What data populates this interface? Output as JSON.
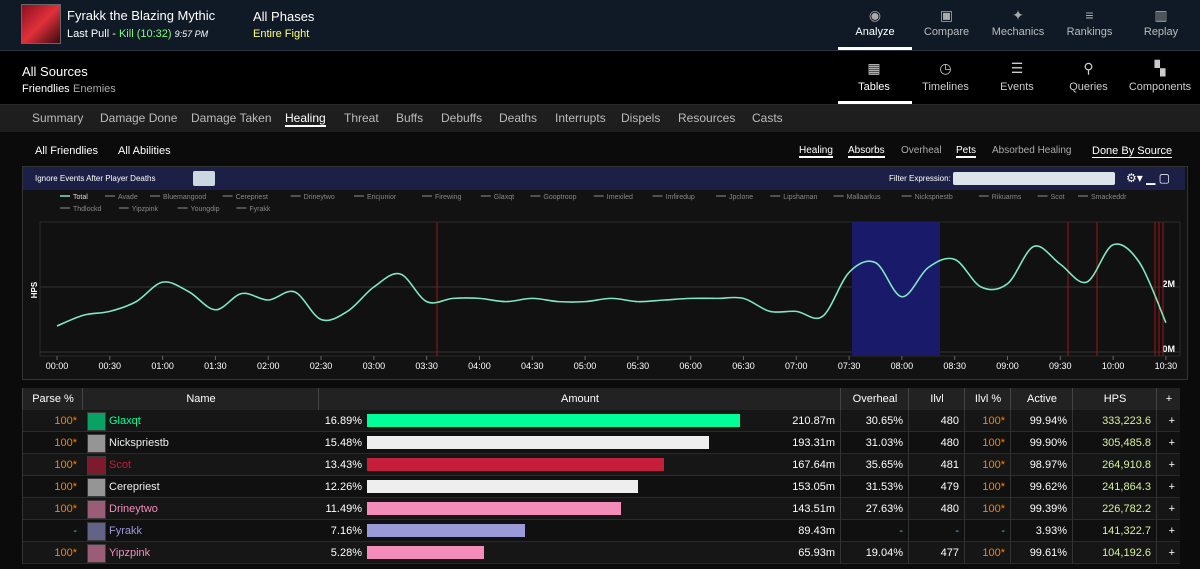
{
  "header": {
    "boss": "Fyrakk the Blazing Mythic",
    "pull": "Last Pull - ",
    "kill": "Kill (10:32)",
    "time": "9:57 PM",
    "phases": "All Phases",
    "phase_sub": "Entire Fight"
  },
  "nav": [
    "Analyze",
    "Compare",
    "Mechanics",
    "Rankings",
    "Replay"
  ],
  "sources": {
    "title": "All Sources",
    "friendlies": "Friendlies",
    "enemies": "Enemies"
  },
  "views": [
    "Tables",
    "Timelines",
    "Events",
    "Queries",
    "Components"
  ],
  "tabs": [
    "Summary",
    "Damage Done",
    "Damage Taken",
    "Healing",
    "Threat",
    "Buffs",
    "Debuffs",
    "Deaths",
    "Interrupts",
    "Dispels",
    "Resources",
    "Casts"
  ],
  "filters": [
    "All Friendlies",
    "All Abilities"
  ],
  "toggles": [
    "Healing",
    "Absorbs",
    "Overheal",
    "Pets",
    "Absorbed Healing"
  ],
  "done_by": "Done By Source",
  "toolbar": {
    "ignore": "Ignore Events After Player Deaths",
    "filter": "Filter Expression:"
  },
  "graph": {
    "type": "line",
    "y_label": "HPS",
    "color": "#7fe8c0",
    "legend": [
      "Total",
      "Avade",
      "Bluemangood",
      "Cerepriest",
      "Drineytwo",
      "Ericjunior",
      "Firewing",
      "Glaxqt",
      "Gooptroop",
      "Imexiled",
      "Imfiredup",
      "Jpclone",
      "Lipshaman",
      "Mallaarkus",
      "Nickspriestb",
      "Rikuarms",
      "Scot",
      "Smackeddr",
      "Thdlockd",
      "Yipzpink",
      "Youngdip",
      "Fyrakk"
    ],
    "x": [
      0,
      15,
      30,
      45,
      60,
      75,
      90,
      105,
      120,
      135,
      150,
      165,
      180,
      195,
      210,
      225,
      240,
      255,
      270,
      285,
      300,
      315,
      330,
      345,
      360,
      375,
      390,
      405,
      420,
      435,
      450,
      465,
      480,
      495,
      510,
      525,
      540,
      555,
      570,
      585,
      600,
      615,
      630
    ],
    "values": [
      0.8,
      1.13,
      1.25,
      1.55,
      2.15,
      1.85,
      1.3,
      1.8,
      1.6,
      1.85,
      1.0,
      1.25,
      2.0,
      2.4,
      1.55,
      1.65,
      1.65,
      1.55,
      1.65,
      1.55,
      1.55,
      1.65,
      1.55,
      1.6,
      1.65,
      1.65,
      1.65,
      1.25,
      1.25,
      1.1,
      2.45,
      2.75,
      1.7,
      2.6,
      2.85,
      2.0,
      2.1,
      3.25,
      2.7,
      2.15,
      3.3,
      2.75,
      0.9
    ],
    "xlim": [
      0,
      638
    ],
    "ylim": [
      0,
      4
    ],
    "xticks": [
      {
        "value": 0,
        "label": "00:00"
      },
      {
        "value": 30,
        "label": "00:30"
      },
      {
        "value": 60,
        "label": "01:00"
      },
      {
        "value": 90,
        "label": "01:30"
      },
      {
        "value": 120,
        "label": "02:00"
      },
      {
        "value": 150,
        "label": "02:30"
      },
      {
        "value": 180,
        "label": "03:00"
      },
      {
        "value": 210,
        "label": "03:30"
      },
      {
        "value": 240,
        "label": "04:00"
      },
      {
        "value": 270,
        "label": "04:30"
      },
      {
        "value": 300,
        "label": "05:00"
      },
      {
        "value": 330,
        "label": "05:30"
      },
      {
        "value": 360,
        "label": "06:00"
      },
      {
        "value": 390,
        "label": "06:30"
      },
      {
        "value": 420,
        "label": "07:00"
      },
      {
        "value": 450,
        "label": "07:30"
      },
      {
        "value": 480,
        "label": "08:00"
      },
      {
        "value": 510,
        "label": "08:30"
      },
      {
        "value": 540,
        "label": "09:00"
      },
      {
        "value": 570,
        "label": "09:30"
      },
      {
        "value": 600,
        "label": "10:00"
      },
      {
        "value": 630,
        "label": "10:30"
      }
    ],
    "yticks": [
      {
        "value": 0,
        "label": "0M"
      },
      {
        "value": 2,
        "label": "2M"
      }
    ]
  },
  "table": {
    "columns": [
      "Parse %",
      "Name",
      "Amount",
      "Overheal",
      "Ilvl",
      "Ilvl %",
      "Active",
      "HPS",
      "+"
    ],
    "rows": [
      {
        "parse": "100*",
        "name": "Glaxqt",
        "color": "#00ff98",
        "share": 16.89,
        "share_label": "16.89%",
        "amount": "210.87m",
        "overheal": "30.65%",
        "ilvl": "480",
        "ilvl_pct": "100*",
        "active": "99.94%",
        "hps": "333,223.6",
        "add": "+"
      },
      {
        "parse": "100*",
        "name": "Nickspriestb",
        "color": "#eeeeee",
        "share": 15.48,
        "share_label": "15.48%",
        "amount": "193.31m",
        "overheal": "31.03%",
        "ilvl": "480",
        "ilvl_pct": "100*",
        "active": "99.90%",
        "hps": "305,485.8",
        "add": "+"
      },
      {
        "parse": "100*",
        "name": "Scot",
        "color": "#c41e3a",
        "share": 13.43,
        "share_label": "13.43%",
        "amount": "167.64m",
        "overheal": "35.65%",
        "ilvl": "481",
        "ilvl_pct": "100*",
        "active": "98.97%",
        "hps": "264,910.8",
        "add": "+"
      },
      {
        "parse": "100*",
        "name": "Cerepriest",
        "color": "#eeeeee",
        "share": 12.26,
        "share_label": "12.26%",
        "amount": "153.05m",
        "overheal": "31.53%",
        "ilvl": "479",
        "ilvl_pct": "100*",
        "active": "99.62%",
        "hps": "241,864.3",
        "add": "+"
      },
      {
        "parse": "100*",
        "name": "Drineytwo",
        "color": "#f48cba",
        "share": 11.49,
        "share_label": "11.49%",
        "amount": "143.51m",
        "overheal": "27.63%",
        "ilvl": "480",
        "ilvl_pct": "100*",
        "active": "99.39%",
        "hps": "226,782.2",
        "add": "+"
      },
      {
        "parse": "-",
        "name": "Fyrakk",
        "color": "#9a9ad8",
        "share": 7.16,
        "share_label": "7.16%",
        "amount": "89.43m",
        "overheal": "-",
        "ilvl": "-",
        "ilvl_pct": "-",
        "active": "3.93%",
        "hps": "141,322.7",
        "add": "+"
      },
      {
        "parse": "100*",
        "name": "Yipzpink",
        "color": "#f48cba",
        "share": 5.28,
        "share_label": "5.28%",
        "amount": "65.93m",
        "overheal": "19.04%",
        "ilvl": "477",
        "ilvl_pct": "100*",
        "active": "99.61%",
        "hps": "104,192.6",
        "add": "+"
      }
    ]
  }
}
